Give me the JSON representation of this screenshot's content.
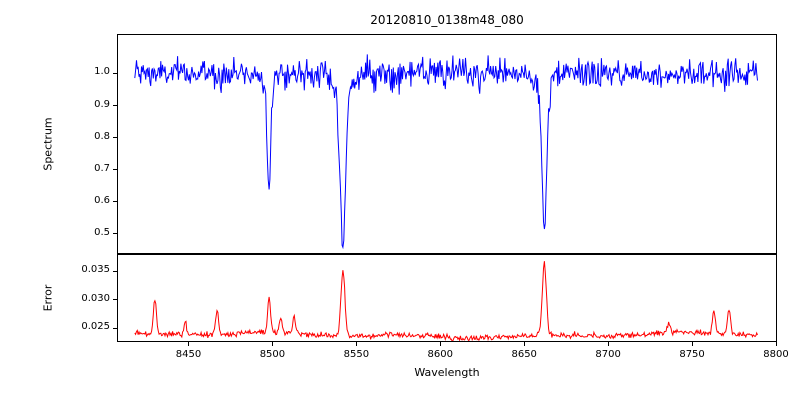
{
  "figure": {
    "background_color": "#ffffff",
    "text_color": "#000000"
  },
  "chart_data": [
    {
      "type": "line",
      "series_name": "spectrum",
      "title": "20120810_0138m48_080",
      "xlabel": "Wavelength",
      "ylabel": "Spectrum",
      "line_color": "#0000ff",
      "grid": false,
      "xlim": [
        8408,
        8800
      ],
      "ylim": [
        0.44,
        1.12
      ],
      "xticks": [
        8450,
        8500,
        8550,
        8600,
        8650,
        8700,
        8750,
        8800
      ],
      "xtick_labels": [
        "8450",
        "8500",
        "8550",
        "8600",
        "8650",
        "8700",
        "8750",
        "8800"
      ],
      "ytick_values": [
        0.5,
        0.6,
        0.7,
        0.8,
        0.9,
        1.0
      ],
      "ytick_labels": [
        "0.5",
        "0.6",
        "0.7",
        "0.8",
        "0.9",
        "1.0"
      ],
      "x_data_range": [
        8418,
        8789
      ],
      "sample_step": 0.5,
      "continuum_level": 1.0,
      "noise_sigma": 0.022,
      "absorption_lines": [
        {
          "center": 8498,
          "depth": 0.34,
          "sigma": 1.0
        },
        {
          "center": 8542,
          "depth": 0.53,
          "sigma": 1.6
        },
        {
          "center": 8662,
          "depth": 0.48,
          "sigma": 1.4
        }
      ]
    },
    {
      "type": "line",
      "series_name": "error",
      "xlabel": "Wavelength",
      "ylabel": "Error",
      "line_color": "#ff0000",
      "grid": false,
      "xlim": [
        8408,
        8800
      ],
      "ylim": [
        0.0228,
        0.0378
      ],
      "ytick_values": [
        0.025,
        0.03,
        0.035
      ],
      "ytick_labels": [
        "0.025",
        "0.030",
        "0.035"
      ],
      "x_data_range": [
        8418,
        8789
      ],
      "sample_step": 0.5,
      "baseline_level": 0.0238,
      "noise_sigma": 0.00025,
      "peaks": [
        {
          "center": 8430,
          "height": 0.0062,
          "sigma": 0.9
        },
        {
          "center": 8448,
          "height": 0.0022,
          "sigma": 0.8
        },
        {
          "center": 8467,
          "height": 0.0042,
          "sigma": 0.9
        },
        {
          "center": 8498,
          "height": 0.006,
          "sigma": 0.9
        },
        {
          "center": 8505,
          "height": 0.0025,
          "sigma": 0.8
        },
        {
          "center": 8513,
          "height": 0.003,
          "sigma": 0.8
        },
        {
          "center": 8542,
          "height": 0.0112,
          "sigma": 1.2
        },
        {
          "center": 8662,
          "height": 0.0126,
          "sigma": 1.2
        },
        {
          "center": 8736,
          "height": 0.0018,
          "sigma": 0.8
        },
        {
          "center": 8763,
          "height": 0.004,
          "sigma": 0.9
        },
        {
          "center": 8772,
          "height": 0.0045,
          "sigma": 0.9
        }
      ]
    }
  ]
}
